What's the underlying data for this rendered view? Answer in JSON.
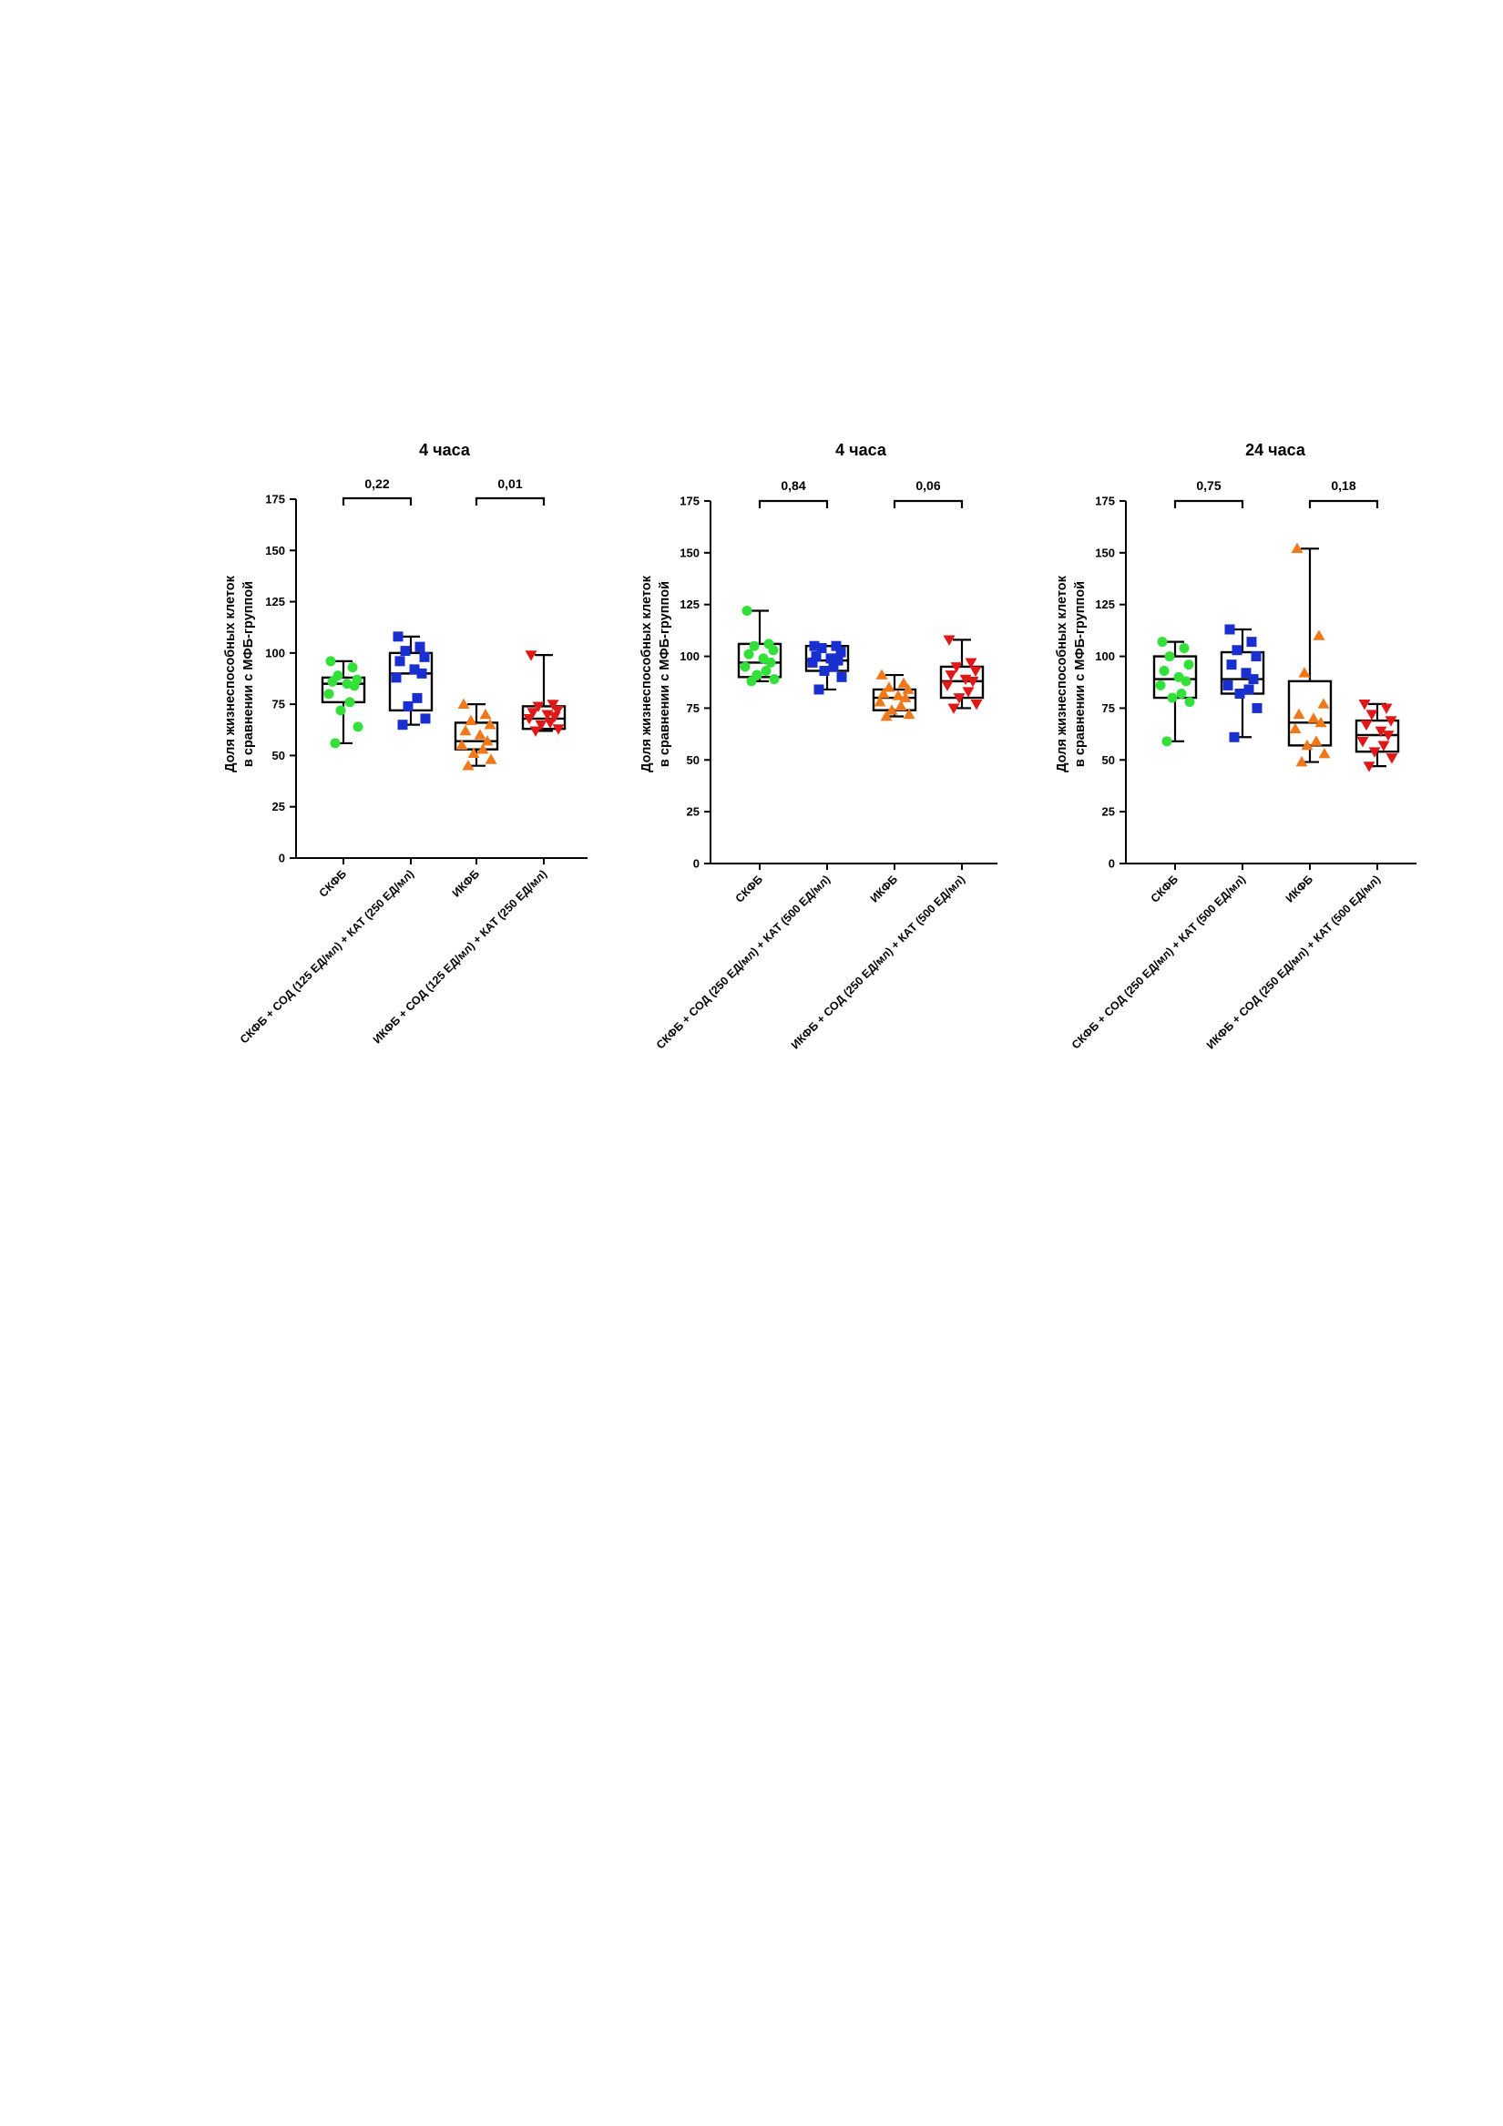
{
  "chart_data": [
    {
      "type": "box",
      "title": "4 часа",
      "ylabel": [
        "Доля жизнеспособных клеток",
        "в сравнении с МФБ-группой"
      ],
      "ylim": [
        0,
        175
      ],
      "yticks": [
        0,
        25,
        50,
        75,
        100,
        125,
        150,
        175
      ],
      "categories": [
        "СКФБ",
        "СКФБ + СОД (125 ЕД/мл) + КАТ (250 ЕД/мл)",
        "ИКФБ",
        "ИКФБ + СОД (125 ЕД/мл) + КАТ (250 ЕД/мл)"
      ],
      "series": [
        {
          "min": 56,
          "q1": 76,
          "median": 85,
          "q3": 88,
          "max": 96,
          "color": "#33e03a",
          "marker": "circle",
          "points": [
            96,
            93,
            89,
            87,
            86,
            85,
            84,
            80,
            76,
            72,
            64,
            56
          ]
        },
        {
          "min": 65,
          "q1": 72,
          "median": 90,
          "q3": 100,
          "max": 108,
          "color": "#1a2fd0",
          "marker": "square",
          "points": [
            108,
            103,
            101,
            98,
            96,
            92,
            90,
            88,
            78,
            74,
            68,
            65
          ]
        },
        {
          "min": 45,
          "q1": 53,
          "median": 57,
          "q3": 66,
          "max": 75,
          "color": "#f07818",
          "marker": "triangle-up",
          "points": [
            75,
            70,
            67,
            65,
            62,
            60,
            57,
            55,
            53,
            51,
            48,
            45
          ]
        },
        {
          "min": 62,
          "q1": 63,
          "median": 68,
          "q3": 74,
          "max": 99,
          "color": "#e01818",
          "marker": "triangle-down",
          "points": [
            99,
            75,
            74,
            72,
            71,
            70,
            69,
            68,
            66,
            65,
            63,
            62
          ]
        }
      ],
      "comparisons": [
        {
          "from": 0,
          "to": 1,
          "label": "0,22"
        },
        {
          "from": 2,
          "to": 3,
          "label": "0,01"
        }
      ]
    },
    {
      "type": "box",
      "title": "4 часа",
      "ylabel": [
        "Доля жизнеспособных клеток",
        "в сравнении с МФБ-группой"
      ],
      "ylim": [
        0,
        175
      ],
      "yticks": [
        0,
        25,
        50,
        75,
        100,
        125,
        150,
        175
      ],
      "categories": [
        "СКФБ",
        "СКФБ + СОД (250 ЕД/мл) + КАТ (500 ЕД/мл)",
        "ИКФБ",
        "ИКФБ + СОД (250 ЕД/мл) + КАТ (500 ЕД/мл)"
      ],
      "series": [
        {
          "min": 88,
          "q1": 90,
          "median": 97,
          "q3": 106,
          "max": 122,
          "color": "#33e03a",
          "marker": "circle",
          "points": [
            122,
            106,
            105,
            103,
            101,
            99,
            97,
            95,
            93,
            91,
            89,
            88
          ]
        },
        {
          "min": 84,
          "q1": 93,
          "median": 98,
          "q3": 105,
          "max": 105,
          "color": "#1a2fd0",
          "marker": "square",
          "points": [
            105,
            105,
            104,
            102,
            100,
            99,
            98,
            97,
            95,
            93,
            90,
            84
          ]
        },
        {
          "min": 71,
          "q1": 74,
          "median": 80,
          "q3": 84,
          "max": 91,
          "color": "#f07818",
          "marker": "triangle-up",
          "points": [
            91,
            87,
            85,
            84,
            82,
            81,
            80,
            78,
            76,
            74,
            72,
            71
          ]
        },
        {
          "min": 75,
          "q1": 80,
          "median": 88,
          "q3": 95,
          "max": 108,
          "color": "#e01818",
          "marker": "triangle-down",
          "points": [
            108,
            97,
            95,
            93,
            91,
            89,
            88,
            86,
            83,
            80,
            77,
            75
          ]
        }
      ],
      "comparisons": [
        {
          "from": 0,
          "to": 1,
          "label": "0,84"
        },
        {
          "from": 2,
          "to": 3,
          "label": "0,06"
        }
      ]
    },
    {
      "type": "box",
      "title": "24 часа",
      "ylabel": [
        "Доля жизнеспособных клеток",
        "в сравнении с МФБ-группой"
      ],
      "ylim": [
        0,
        175
      ],
      "yticks": [
        0,
        25,
        50,
        75,
        100,
        125,
        150,
        175
      ],
      "categories": [
        "СКФБ",
        "СКФБ + СОД (250 ЕД/мл) + КАТ (500 ЕД/мл)",
        "ИКФБ",
        "ИКФБ + СОД (250 ЕД/мл) + КАТ (500 ЕД/мл)"
      ],
      "series": [
        {
          "min": 59,
          "q1": 80,
          "median": 89,
          "q3": 100,
          "max": 107,
          "color": "#33e03a",
          "marker": "circle",
          "points": [
            107,
            104,
            100,
            96,
            93,
            90,
            88,
            86,
            82,
            80,
            78,
            59
          ]
        },
        {
          "min": 61,
          "q1": 82,
          "median": 89,
          "q3": 102,
          "max": 113,
          "color": "#1a2fd0",
          "marker": "square",
          "points": [
            113,
            107,
            103,
            100,
            96,
            92,
            89,
            86,
            84,
            82,
            75,
            61
          ]
        },
        {
          "min": 49,
          "q1": 57,
          "median": 68,
          "q3": 88,
          "max": 152,
          "color": "#f07818",
          "marker": "triangle-up",
          "points": [
            152,
            110,
            92,
            77,
            72,
            70,
            68,
            65,
            59,
            57,
            53,
            49
          ]
        },
        {
          "min": 47,
          "q1": 54,
          "median": 62,
          "q3": 69,
          "max": 77,
          "color": "#e01818",
          "marker": "triangle-down",
          "points": [
            77,
            75,
            72,
            69,
            67,
            64,
            62,
            59,
            57,
            54,
            51,
            47
          ]
        }
      ],
      "comparisons": [
        {
          "from": 0,
          "to": 1,
          "label": "0,75"
        },
        {
          "from": 2,
          "to": 3,
          "label": "0,18"
        }
      ]
    }
  ]
}
